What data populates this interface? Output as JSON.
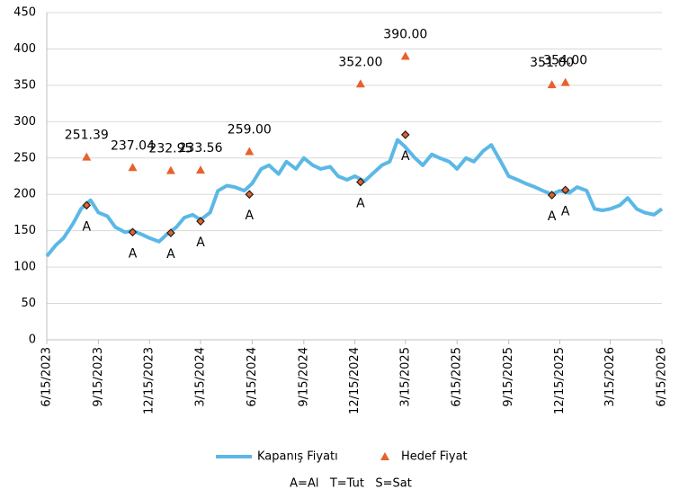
{
  "chart_data": {
    "type": "line",
    "x": [
      "6/15/2023",
      "7/1/2023",
      "7/15/2023",
      "8/1/2023",
      "8/15/2023",
      "9/1/2023",
      "9/15/2023",
      "10/1/2023",
      "10/15/2023",
      "11/1/2023",
      "11/15/2023",
      "12/1/2023",
      "12/15/2023",
      "1/1/2024",
      "1/15/2024",
      "2/1/2024",
      "2/15/2024",
      "3/1/2024",
      "3/15/2024",
      "4/1/2024",
      "4/15/2024",
      "5/1/2024",
      "5/15/2024",
      "6/1/2024",
      "6/15/2024",
      "7/1/2024",
      "7/15/2024",
      "8/1/2024",
      "8/15/2024",
      "9/1/2024",
      "9/15/2024",
      "10/1/2024",
      "10/15/2024",
      "11/1/2024",
      "11/15/2024",
      "12/1/2024",
      "12/15/2024",
      "1/1/2025",
      "1/15/2025",
      "2/1/2025",
      "2/15/2025",
      "3/1/2025",
      "3/15/2025",
      "4/1/2025",
      "4/15/2025",
      "5/1/2025",
      "5/15/2025",
      "6/1/2025",
      "6/15/2025",
      "7/1/2025",
      "7/15/2025",
      "8/1/2025",
      "8/15/2025",
      "9/1/2025",
      "9/15/2025",
      "10/1/2025",
      "10/15/2025",
      "11/1/2025",
      "11/15/2025",
      "12/1/2025",
      "12/15/2025",
      "1/1/2026",
      "1/15/2026",
      "2/1/2026",
      "2/15/2026",
      "3/1/2026",
      "3/15/2026",
      "4/1/2026",
      "4/15/2026",
      "5/1/2026",
      "5/15/2026",
      "6/1/2026",
      "6/15/2026"
    ],
    "series": [
      {
        "name": "Kapanış Fiyatı",
        "color": "#5bb8e6",
        "values": [
          115,
          130,
          140,
          160,
          180,
          192,
          175,
          170,
          155,
          148,
          150,
          145,
          140,
          135,
          145,
          155,
          168,
          172,
          165,
          175,
          205,
          212,
          210,
          205,
          215,
          235,
          240,
          228,
          245,
          235,
          250,
          240,
          235,
          238,
          225,
          220,
          225,
          218,
          228,
          240,
          245,
          275,
          265,
          250,
          240,
          255,
          250,
          245,
          235,
          250,
          245,
          260,
          268,
          245,
          225,
          220,
          215,
          210,
          205,
          200,
          205,
          202,
          210,
          205,
          180,
          178,
          180,
          185,
          195,
          180,
          175,
          172,
          180
        ]
      }
    ],
    "targets": {
      "name": "Hedef Fiyat",
      "color": "#e8602c",
      "x": [
        "8/25/2023",
        "11/15/2023",
        "1/22/2024",
        "3/15/2024",
        "6/10/2024",
        "12/25/2024",
        "3/15/2025",
        "12/1/2025",
        "12/25/2025"
      ],
      "values": [
        251.39,
        237.04,
        232.95,
        233.56,
        259,
        352,
        390,
        351,
        354
      ],
      "value_labels": [
        "251.39",
        "237.04",
        "232.95",
        "233.56",
        "259.00",
        "352.00",
        "390.00",
        "351.00",
        "354.00"
      ]
    },
    "signals": {
      "x": [
        "8/25/2023",
        "11/15/2023",
        "1/22/2024",
        "3/15/2024",
        "6/10/2024",
        "12/25/2024",
        "3/15/2025",
        "12/1/2025",
        "12/25/2025"
      ],
      "values": [
        185,
        148,
        147,
        163,
        200,
        217,
        282,
        199,
        206
      ],
      "labels": [
        "A",
        "A",
        "A",
        "A",
        "A",
        "A",
        "A",
        "A",
        "A"
      ]
    },
    "xlim": [
      "6/15/2023",
      "6/15/2026"
    ],
    "xticks": [
      "6/15/2023",
      "9/15/2023",
      "12/15/2023",
      "3/15/2024",
      "6/15/2024",
      "9/15/2024",
      "12/15/2024",
      "3/15/2025",
      "6/15/2025",
      "9/15/2025",
      "12/15/2025",
      "3/15/2026",
      "6/15/2026"
    ],
    "ylim": [
      0,
      450
    ],
    "yticks": [
      0,
      50,
      100,
      150,
      200,
      250,
      300,
      350,
      400,
      450
    ],
    "grid": true,
    "note": "A=Al   T=Tut   S=Sat"
  }
}
